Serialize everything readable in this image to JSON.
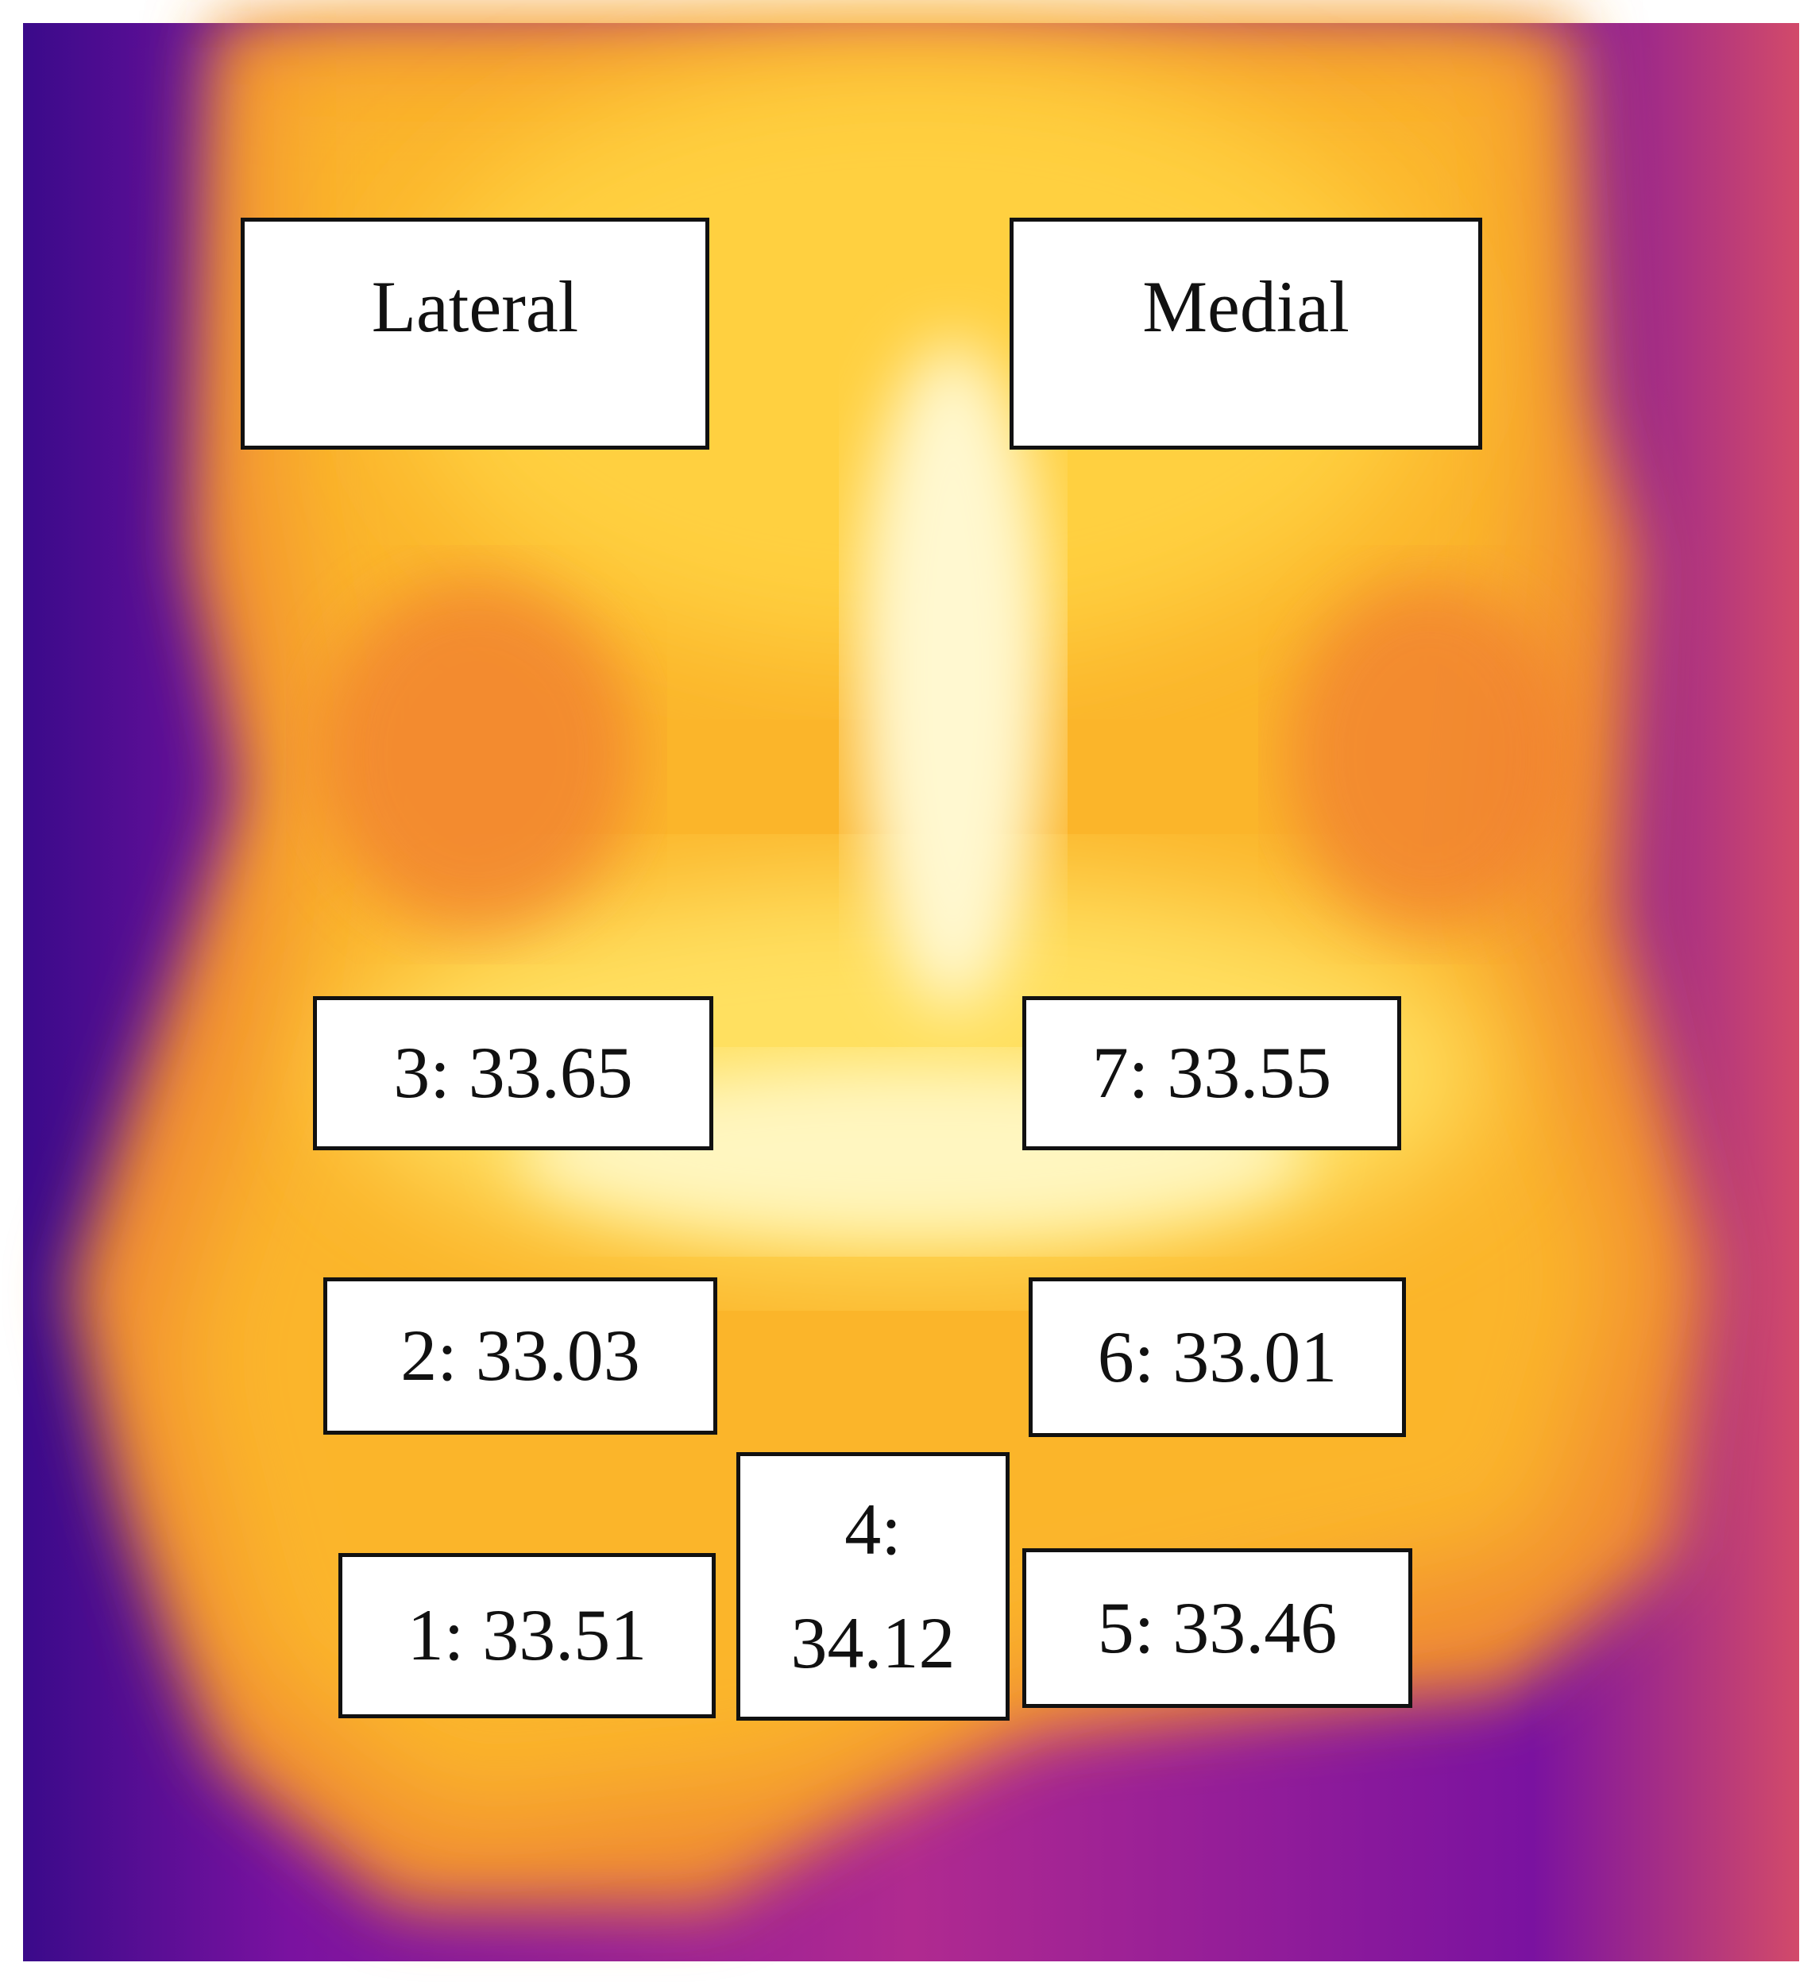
{
  "header": {
    "lateral": "Lateral",
    "medial": "Medial"
  },
  "regions": [
    "1: 33.51",
    "2: 33.03",
    "3: 33.65",
    "4: 34.12",
    "5: 33.46",
    "6: 33.01",
    "7: 33.55"
  ]
}
